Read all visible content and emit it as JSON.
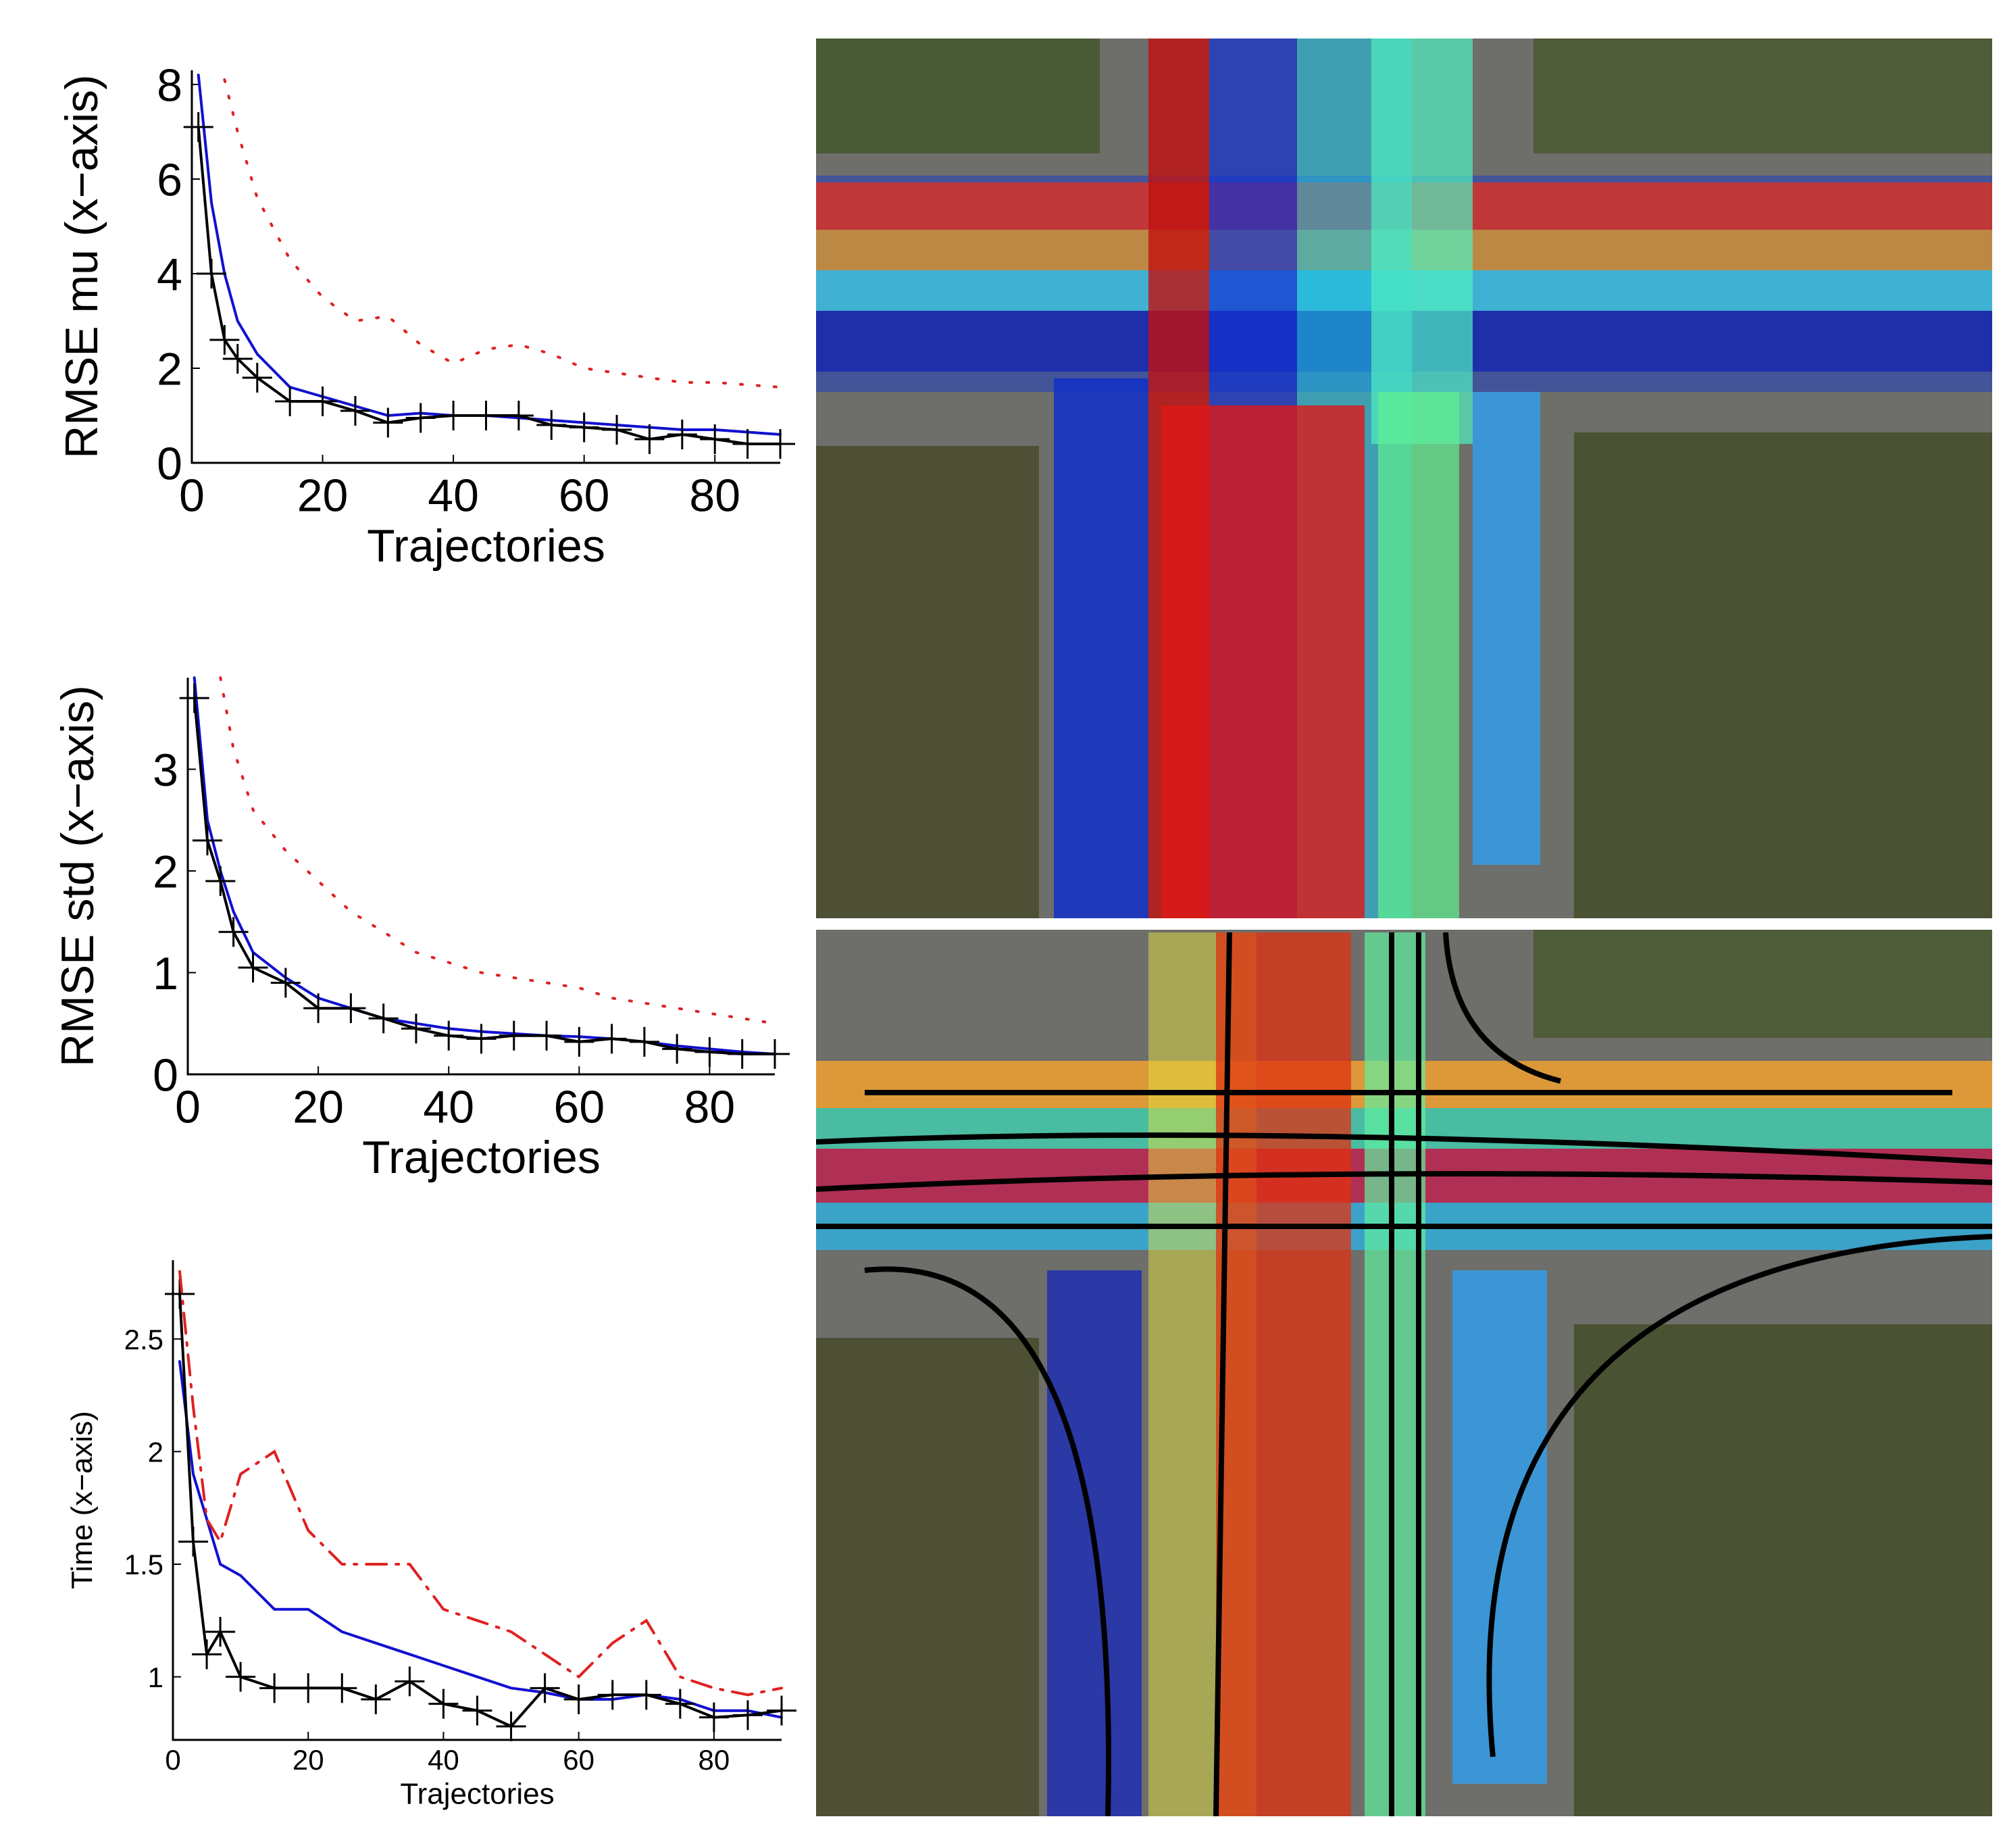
{
  "chart_data": [
    {
      "type": "line",
      "xlabel": "Trajectories",
      "ylabel": "RMSE mu (x−axis)",
      "x": [
        1,
        3,
        5,
        7,
        10,
        15,
        20,
        25,
        30,
        35,
        40,
        45,
        50,
        55,
        60,
        65,
        70,
        75,
        80,
        85,
        90
      ],
      "xlim": [
        0,
        90
      ],
      "ylim": [
        0,
        8.3
      ],
      "xticks": [
        0,
        20,
        40,
        60,
        80
      ],
      "yticks": [
        0,
        2,
        4,
        6,
        8
      ],
      "series": [
        {
          "color": "#1010d0",
          "line_style": "solid",
          "values": [
            8.2,
            5.5,
            4,
            3,
            2.3,
            1.6,
            1.4,
            1.2,
            1.0,
            1.05,
            1.0,
            1.0,
            0.95,
            0.9,
            0.85,
            0.8,
            0.75,
            0.7,
            0.7,
            0.65,
            0.6
          ]
        },
        {
          "color": "#000000",
          "line_style": "solid",
          "marker": "+",
          "values": [
            7.1,
            4,
            2.6,
            2.2,
            1.8,
            1.3,
            1.3,
            1.1,
            0.85,
            0.95,
            1.0,
            1.0,
            1.0,
            0.8,
            0.75,
            0.7,
            0.5,
            0.6,
            0.5,
            0.4,
            0.4
          ]
        },
        {
          "color": "#e02020",
          "line_style": "dotted",
          "values": [
            null,
            null,
            8.1,
            7,
            5.6,
            4.3,
            3.5,
            3.0,
            3.1,
            2.5,
            2.1,
            2.4,
            2.5,
            2.3,
            2.0,
            1.9,
            1.8,
            1.7,
            1.7,
            1.65,
            1.6
          ]
        }
      ]
    },
    {
      "type": "line",
      "xlabel": "Trajectories",
      "ylabel": "RMSE std (x−axis)",
      "x": [
        1,
        3,
        5,
        7,
        10,
        15,
        20,
        25,
        30,
        35,
        40,
        45,
        50,
        55,
        60,
        65,
        70,
        75,
        80,
        85,
        90
      ],
      "xlim": [
        0,
        90
      ],
      "ylim": [
        0,
        3.9
      ],
      "xticks": [
        0,
        20,
        40,
        60,
        80
      ],
      "yticks": [
        0,
        1,
        2,
        3
      ],
      "series": [
        {
          "color": "#1010d0",
          "line_style": "solid",
          "values": [
            3.9,
            2.5,
            2.0,
            1.6,
            1.2,
            0.95,
            0.75,
            0.65,
            0.55,
            0.5,
            0.45,
            0.42,
            0.4,
            0.38,
            0.37,
            0.35,
            0.32,
            0.28,
            0.25,
            0.22,
            0.2
          ]
        },
        {
          "color": "#000000",
          "line_style": "solid",
          "marker": "+",
          "values": [
            3.7,
            2.3,
            1.9,
            1.4,
            1.05,
            0.9,
            0.65,
            0.65,
            0.55,
            0.45,
            0.38,
            0.35,
            0.38,
            0.38,
            0.32,
            0.35,
            0.32,
            0.25,
            0.22,
            0.2,
            0.2
          ]
        },
        {
          "color": "#e02020",
          "line_style": "dotted",
          "values": [
            null,
            null,
            3.9,
            3.2,
            2.6,
            2.2,
            1.9,
            1.6,
            1.4,
            1.2,
            1.1,
            1.0,
            0.95,
            0.9,
            0.85,
            0.75,
            0.7,
            0.65,
            0.6,
            0.55,
            0.5
          ]
        }
      ]
    },
    {
      "type": "line",
      "xlabel": "Trajectories",
      "ylabel": "Time (x−axis)",
      "x": [
        1,
        3,
        5,
        7,
        10,
        15,
        20,
        25,
        30,
        35,
        40,
        45,
        50,
        55,
        60,
        65,
        70,
        75,
        80,
        85,
        90
      ],
      "xlim": [
        0,
        90
      ],
      "ylim": [
        0.72,
        2.85
      ],
      "xticks": [
        0,
        20,
        40,
        60,
        80
      ],
      "yticks": [
        1,
        1.5,
        2,
        2.5
      ],
      "series": [
        {
          "color": "#1010d0",
          "line_style": "solid",
          "values": [
            2.4,
            1.9,
            1.7,
            1.5,
            1.45,
            1.3,
            1.3,
            1.2,
            1.15,
            1.1,
            1.05,
            1.0,
            0.95,
            0.93,
            0.9,
            0.9,
            0.92,
            0.9,
            0.85,
            0.85,
            0.82
          ]
        },
        {
          "color": "#000000",
          "line_style": "solid",
          "marker": "+",
          "values": [
            2.7,
            1.6,
            1.1,
            1.2,
            1.0,
            0.95,
            0.95,
            0.95,
            0.9,
            0.98,
            0.88,
            0.85,
            0.78,
            0.95,
            0.9,
            0.92,
            0.92,
            0.88,
            0.82,
            0.83,
            0.85
          ]
        },
        {
          "color": "#e02020",
          "line_style": "dashdot",
          "values": [
            2.8,
            2.2,
            1.7,
            1.6,
            1.9,
            2.0,
            1.65,
            1.5,
            1.5,
            1.5,
            1.3,
            1.25,
            1.2,
            1.1,
            1.0,
            1.15,
            1.25,
            1.0,
            0.95,
            0.92,
            0.95
          ]
        }
      ]
    }
  ]
}
